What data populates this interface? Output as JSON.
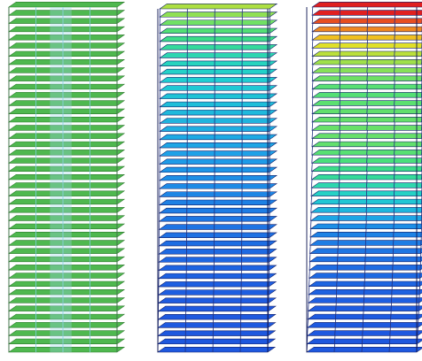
{
  "figure": {
    "panels": [
      {
        "id": "structural-model",
        "shading": "uniform",
        "colors": {
          "floor": "#4fb84f",
          "frame": "#7fd0e0",
          "core": "#9ad8e8"
        }
      },
      {
        "id": "deformed-shape-moderate",
        "shading": "contour",
        "warp": 0.35
      },
      {
        "id": "deformed-shape-large",
        "shading": "contour",
        "warp": 1.0
      }
    ],
    "contour_colors": [
      "#1a1fb0",
      "#1e5ae0",
      "#1ea0e8",
      "#20d0d0",
      "#40e080",
      "#b0e040",
      "#f0e020",
      "#f08020",
      "#e02020"
    ],
    "background": "#ffffff"
  }
}
